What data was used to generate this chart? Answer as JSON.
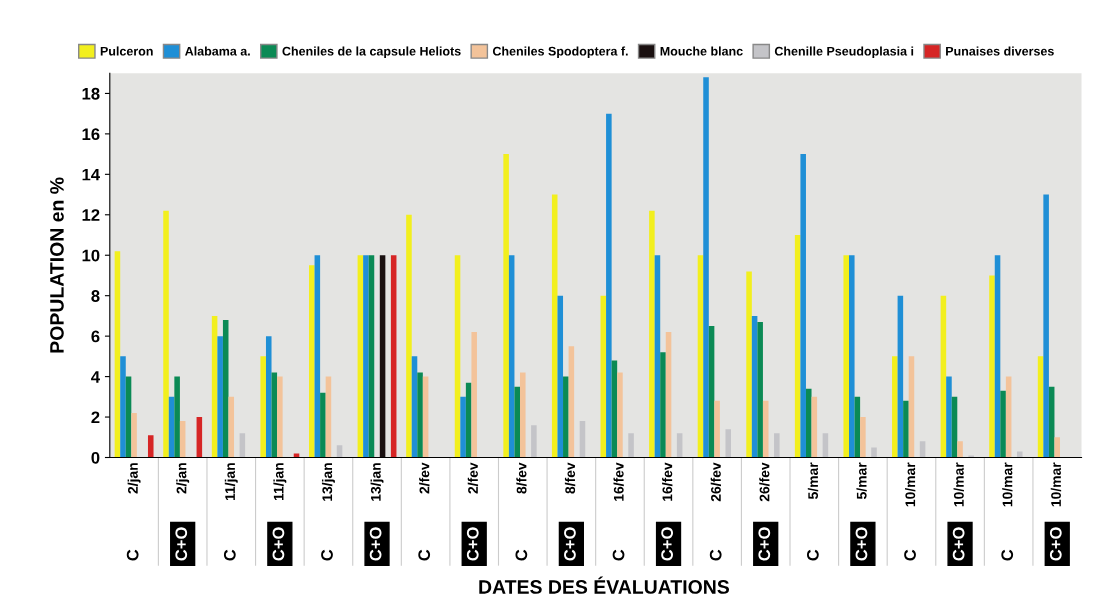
{
  "chart_data": {
    "type": "bar",
    "annotations": [
      "DATES DES ÉVALUATIONS"
    ],
    "ylabel": "POPULATION en %",
    "categories": [
      "2/jan\nC",
      "2/jan\nC+O",
      "11/jan\nC",
      "11/jan\nC+O",
      "13/jan\nC",
      "13/jan\nC+O",
      "2/fev\nC",
      "2/fev\nC+O",
      "8/fev\nC",
      "8/fev\nC+O",
      "16/fev\nC",
      "16/fev\nC+O",
      "26/fev\nC",
      "26/fev\nC+O",
      "5/mar\nC",
      "5/mar\nC+O",
      "10/mar\nC",
      "10/mar\nC+O",
      "10/mar\nC",
      "10/mar\nC+O"
    ],
    "series": [
      {
        "name": "Pulceron",
        "color": "#f2ef1e",
        "values": [
          10.2,
          12.2,
          7,
          5,
          9.5,
          10,
          12,
          10,
          15,
          13,
          8,
          12.2,
          10,
          9.2,
          11,
          10,
          5,
          8,
          9,
          5
        ]
      },
      {
        "name": "Alabama a.",
        "color": "#1f8fd6",
        "values": [
          5,
          3,
          6,
          6,
          10,
          10,
          5,
          3,
          10,
          8,
          17,
          10,
          18.8,
          7,
          15,
          10,
          8,
          4,
          10,
          13
        ]
      },
      {
        "name": "Cheniles de la capsule Heliots",
        "color": "#0b8a55",
        "values": [
          4,
          4,
          6.8,
          4.2,
          3.2,
          10,
          4.2,
          3.7,
          3.5,
          4,
          4.8,
          5.2,
          6.5,
          6.7,
          3.4,
          3,
          2.8,
          3,
          3.3,
          3.5
        ]
      },
      {
        "name": "Cheniles Spodoptera f.",
        "color": "#f3c39a",
        "values": [
          2.2,
          1.8,
          3,
          4,
          4,
          0,
          4,
          6.2,
          4.2,
          5.5,
          4.2,
          6.2,
          2.8,
          2.8,
          3,
          2,
          5,
          0.8,
          4,
          1
        ]
      },
      {
        "name": "Mouche blanc",
        "color": "#1a1010",
        "values": [
          0,
          0,
          0,
          0,
          0,
          10,
          0,
          0,
          0,
          0,
          0,
          0,
          0,
          0,
          0,
          0,
          0,
          0,
          0,
          0
        ]
      },
      {
        "name": "Chenille Pseudoplasia i",
        "color": "#c4c4c8",
        "values": [
          0,
          0,
          1.2,
          0,
          0.6,
          0,
          0,
          0,
          1.6,
          1.8,
          1.2,
          1.2,
          1.4,
          1.2,
          1.2,
          0.5,
          0.8,
          0.1,
          0.3,
          0
        ]
      },
      {
        "name": "Punaises diverses",
        "color": "#d62525",
        "values": [
          1.1,
          2,
          0,
          0.2,
          0,
          10,
          0,
          0,
          0,
          0,
          0,
          0,
          0,
          0,
          0,
          0,
          0,
          0,
          0,
          0
        ]
      }
    ],
    "ylim": [
      0,
      19
    ],
    "yticks": [
      0,
      2,
      4,
      6,
      8,
      10,
      12,
      14,
      16,
      18
    ],
    "grid": false,
    "legend": "top"
  }
}
